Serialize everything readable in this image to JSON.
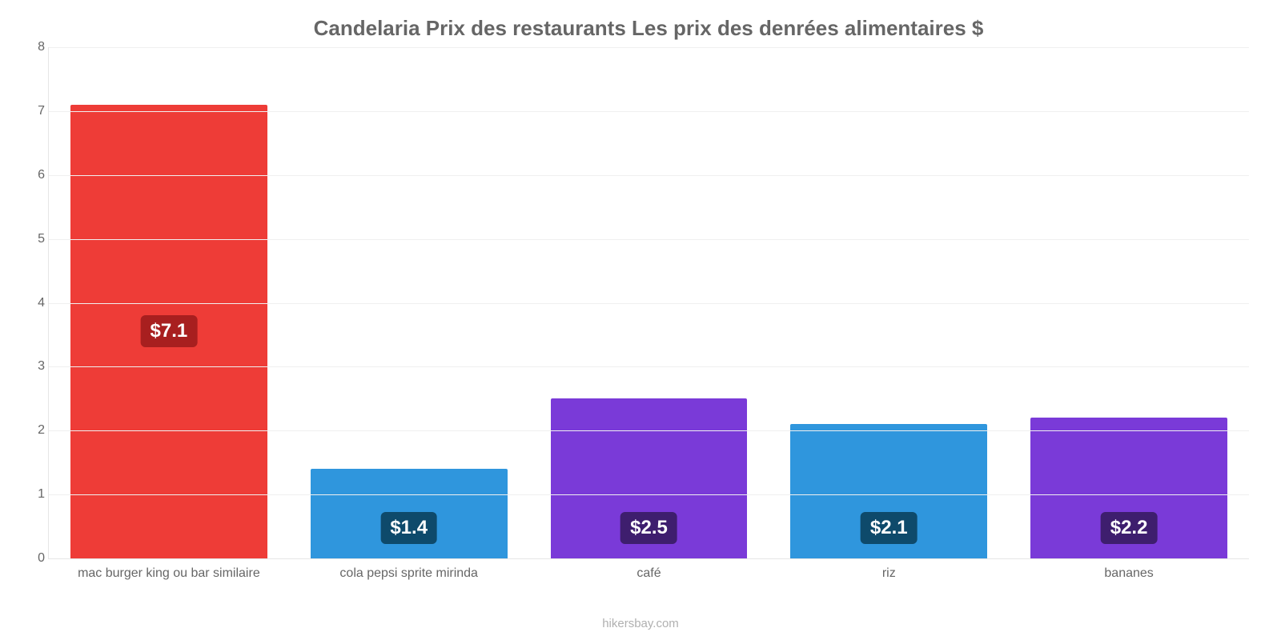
{
  "chart": {
    "type": "bar",
    "title": "Candelaria Prix des restaurants Les prix des denrées alimentaires $",
    "title_fontsize": 26,
    "title_color": "#666666",
    "background_color": "#ffffff",
    "grid_color": "#f0f0f0",
    "axis_color": "#e6e6e6",
    "tick_color": "#666666",
    "label_fontsize": 16,
    "ylim": [
      0,
      8
    ],
    "ytick_step": 1,
    "yticks": [
      0,
      1,
      2,
      3,
      4,
      5,
      6,
      7,
      8
    ],
    "bar_width_pct": 82,
    "badge_fontsize": 24,
    "categories": [
      "mac burger king ou bar similaire",
      "cola pepsi sprite mirinda",
      "café",
      "riz",
      "bananes"
    ],
    "values": [
      7.1,
      1.4,
      2.5,
      2.1,
      2.2
    ],
    "value_labels": [
      "$7.1",
      "$1.4",
      "$2.5",
      "$2.1",
      "$2.2"
    ],
    "bar_colors": [
      "#ee3c37",
      "#2f96dd",
      "#7a3ad8",
      "#2f96dd",
      "#7a3ad8"
    ],
    "badge_colors": [
      "#a81f1f",
      "#0e4a6b",
      "#3e1e6e",
      "#0e4a6b",
      "#3e1e6e"
    ],
    "badge_position": [
      "middle",
      "bottom",
      "bottom",
      "bottom",
      "bottom"
    ],
    "attribution": "hikersbay.com",
    "attribution_color": "#b0b0b0"
  }
}
